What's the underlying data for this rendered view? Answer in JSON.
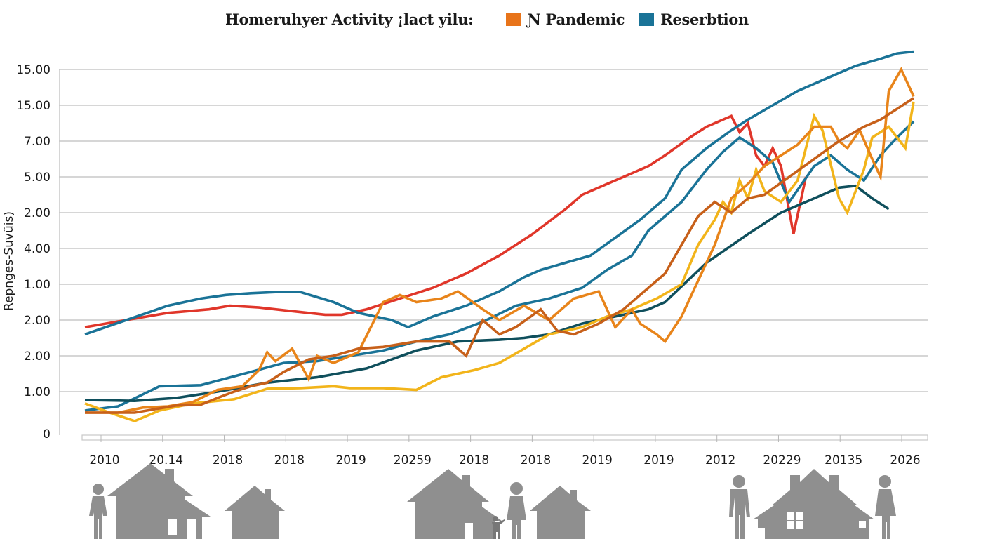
{
  "chart_data": {
    "type": "line",
    "title": "Homeruhyer Activity ¡lact yilu:",
    "legend": [
      {
        "label": "Ɲ Pandemic",
        "color": "#e8741a"
      },
      {
        "label": "Reserbtion",
        "color": "#1a7397"
      }
    ],
    "legend_position": "top",
    "ylabel": "Repnges-Suvüis)",
    "xlabel": "",
    "y_tick_labels": [
      "0",
      "1.00",
      "2.00",
      "2.00",
      "1.00",
      "4.00",
      "2.00",
      "5.00",
      "7.00",
      "15.00",
      "15.00"
    ],
    "y_axis_positions": [
      0,
      1,
      2,
      3,
      4,
      5,
      6,
      7,
      8,
      9,
      10
    ],
    "x_tick_labels": [
      "2010",
      "20.14",
      "2018",
      "2018",
      "2019",
      "20259",
      "2018",
      "2018",
      "2019",
      "2019",
      "2012",
      "20229",
      "20135",
      "2026"
    ],
    "grid": true,
    "note": "Y values expressed in axis-position units (0 = baseline, 10 = top gridline); x in 0-1 fraction across the plot.",
    "series": [
      {
        "name": "red",
        "color": "#e0362a",
        "points": [
          [
            0.0,
            2.8
          ],
          [
            0.05,
            3.0
          ],
          [
            0.1,
            3.2
          ],
          [
            0.15,
            3.3
          ],
          [
            0.175,
            3.4
          ],
          [
            0.21,
            3.35
          ],
          [
            0.25,
            3.25
          ],
          [
            0.29,
            3.15
          ],
          [
            0.31,
            3.15
          ],
          [
            0.34,
            3.3
          ],
          [
            0.38,
            3.6
          ],
          [
            0.42,
            3.9
          ],
          [
            0.46,
            4.3
          ],
          [
            0.5,
            4.8
          ],
          [
            0.54,
            5.4
          ],
          [
            0.58,
            6.1
          ],
          [
            0.6,
            6.5
          ],
          [
            0.63,
            6.8
          ],
          [
            0.66,
            7.1
          ],
          [
            0.68,
            7.3
          ],
          [
            0.7,
            7.6
          ],
          [
            0.73,
            8.1
          ],
          [
            0.75,
            8.4
          ],
          [
            0.77,
            8.6
          ],
          [
            0.78,
            8.7
          ],
          [
            0.79,
            8.25
          ],
          [
            0.8,
            8.5
          ],
          [
            0.81,
            7.6
          ],
          [
            0.82,
            7.3
          ],
          [
            0.83,
            7.8
          ],
          [
            0.84,
            7.3
          ],
          [
            0.855,
            5.4
          ],
          [
            0.87,
            7.0
          ]
        ]
      },
      {
        "name": "blue-upper",
        "color": "#1a7397",
        "points": [
          [
            0.0,
            2.6
          ],
          [
            0.05,
            3.0
          ],
          [
            0.1,
            3.4
          ],
          [
            0.14,
            3.6
          ],
          [
            0.17,
            3.7
          ],
          [
            0.2,
            3.75
          ],
          [
            0.23,
            3.78
          ],
          [
            0.26,
            3.78
          ],
          [
            0.3,
            3.5
          ],
          [
            0.33,
            3.2
          ],
          [
            0.37,
            3.0
          ],
          [
            0.39,
            2.8
          ],
          [
            0.42,
            3.1
          ],
          [
            0.46,
            3.4
          ],
          [
            0.5,
            3.8
          ],
          [
            0.53,
            4.2
          ],
          [
            0.55,
            4.4
          ],
          [
            0.58,
            4.6
          ],
          [
            0.61,
            4.8
          ],
          [
            0.64,
            5.3
          ],
          [
            0.67,
            5.8
          ],
          [
            0.7,
            6.4
          ],
          [
            0.72,
            7.2
          ],
          [
            0.75,
            7.8
          ],
          [
            0.78,
            8.3
          ],
          [
            0.8,
            8.6
          ],
          [
            0.83,
            9.0
          ],
          [
            0.86,
            9.4
          ],
          [
            0.9,
            9.8
          ],
          [
            0.93,
            10.1
          ],
          [
            0.96,
            10.3
          ],
          [
            0.98,
            10.45
          ],
          [
            1.0,
            10.5
          ]
        ]
      },
      {
        "name": "blue-lower",
        "color": "#1a7397",
        "points": [
          [
            0.0,
            0.55
          ],
          [
            0.04,
            0.65
          ],
          [
            0.09,
            1.15
          ],
          [
            0.14,
            1.18
          ],
          [
            0.2,
            1.55
          ],
          [
            0.24,
            1.8
          ],
          [
            0.28,
            1.85
          ],
          [
            0.32,
            2.0
          ],
          [
            0.36,
            2.15
          ],
          [
            0.4,
            2.4
          ],
          [
            0.44,
            2.6
          ],
          [
            0.48,
            2.95
          ],
          [
            0.52,
            3.4
          ],
          [
            0.56,
            3.6
          ],
          [
            0.6,
            3.9
          ],
          [
            0.63,
            4.4
          ],
          [
            0.66,
            4.8
          ],
          [
            0.68,
            5.5
          ],
          [
            0.72,
            6.3
          ],
          [
            0.75,
            7.2
          ],
          [
            0.77,
            7.7
          ],
          [
            0.79,
            8.1
          ],
          [
            0.81,
            7.8
          ],
          [
            0.83,
            7.4
          ],
          [
            0.85,
            6.3
          ],
          [
            0.88,
            7.3
          ],
          [
            0.9,
            7.6
          ],
          [
            0.92,
            7.2
          ],
          [
            0.94,
            6.9
          ],
          [
            0.96,
            7.6
          ],
          [
            0.98,
            8.1
          ],
          [
            1.0,
            8.55
          ]
        ]
      },
      {
        "name": "dark-teal",
        "color": "#0f4f5c",
        "points": [
          [
            0.0,
            0.8
          ],
          [
            0.06,
            0.78
          ],
          [
            0.11,
            0.85
          ],
          [
            0.16,
            1.0
          ],
          [
            0.22,
            1.25
          ],
          [
            0.28,
            1.4
          ],
          [
            0.34,
            1.65
          ],
          [
            0.4,
            2.15
          ],
          [
            0.45,
            2.4
          ],
          [
            0.5,
            2.45
          ],
          [
            0.53,
            2.5
          ],
          [
            0.56,
            2.6
          ],
          [
            0.6,
            2.9
          ],
          [
            0.64,
            3.1
          ],
          [
            0.68,
            3.3
          ],
          [
            0.7,
            3.5
          ],
          [
            0.75,
            4.6
          ],
          [
            0.8,
            5.4
          ],
          [
            0.84,
            6.0
          ],
          [
            0.88,
            6.4
          ],
          [
            0.91,
            6.7
          ],
          [
            0.93,
            6.75
          ],
          [
            0.95,
            6.4
          ],
          [
            0.97,
            6.1
          ]
        ]
      },
      {
        "name": "yellow",
        "color": "#f2b41a",
        "points": [
          [
            0.0,
            0.72
          ],
          [
            0.03,
            0.5
          ],
          [
            0.06,
            0.3
          ],
          [
            0.09,
            0.55
          ],
          [
            0.13,
            0.72
          ],
          [
            0.18,
            0.82
          ],
          [
            0.22,
            1.08
          ],
          [
            0.26,
            1.1
          ],
          [
            0.3,
            1.15
          ],
          [
            0.32,
            1.1
          ],
          [
            0.36,
            1.1
          ],
          [
            0.4,
            1.05
          ],
          [
            0.43,
            1.4
          ],
          [
            0.47,
            1.6
          ],
          [
            0.5,
            1.8
          ],
          [
            0.53,
            2.2
          ],
          [
            0.56,
            2.6
          ],
          [
            0.6,
            2.8
          ],
          [
            0.63,
            3.1
          ],
          [
            0.66,
            3.3
          ],
          [
            0.69,
            3.6
          ],
          [
            0.72,
            4.0
          ],
          [
            0.74,
            5.1
          ],
          [
            0.76,
            5.8
          ],
          [
            0.77,
            6.3
          ],
          [
            0.78,
            6.0
          ],
          [
            0.79,
            6.9
          ],
          [
            0.8,
            6.4
          ],
          [
            0.81,
            7.2
          ],
          [
            0.82,
            6.6
          ],
          [
            0.84,
            6.3
          ],
          [
            0.86,
            6.9
          ],
          [
            0.88,
            8.7
          ],
          [
            0.89,
            8.3
          ],
          [
            0.91,
            6.4
          ],
          [
            0.92,
            6.0
          ],
          [
            0.94,
            7.2
          ],
          [
            0.95,
            8.1
          ],
          [
            0.97,
            8.4
          ],
          [
            0.99,
            7.8
          ],
          [
            1.0,
            9.1
          ]
        ]
      },
      {
        "name": "orange",
        "color": "#e8841a",
        "points": [
          [
            0.0,
            0.5
          ],
          [
            0.04,
            0.5
          ],
          [
            0.07,
            0.62
          ],
          [
            0.1,
            0.65
          ],
          [
            0.13,
            0.75
          ],
          [
            0.16,
            1.05
          ],
          [
            0.19,
            1.15
          ],
          [
            0.21,
            1.6
          ],
          [
            0.22,
            2.1
          ],
          [
            0.23,
            1.85
          ],
          [
            0.25,
            2.2
          ],
          [
            0.27,
            1.35
          ],
          [
            0.28,
            2.0
          ],
          [
            0.3,
            1.8
          ],
          [
            0.33,
            2.1
          ],
          [
            0.36,
            3.5
          ],
          [
            0.38,
            3.7
          ],
          [
            0.4,
            3.5
          ],
          [
            0.43,
            3.6
          ],
          [
            0.45,
            3.8
          ],
          [
            0.48,
            3.3
          ],
          [
            0.5,
            3.0
          ],
          [
            0.53,
            3.4
          ],
          [
            0.56,
            3.0
          ],
          [
            0.59,
            3.6
          ],
          [
            0.62,
            3.8
          ],
          [
            0.64,
            2.8
          ],
          [
            0.66,
            3.3
          ],
          [
            0.67,
            2.9
          ],
          [
            0.69,
            2.6
          ],
          [
            0.7,
            2.4
          ],
          [
            0.72,
            3.1
          ],
          [
            0.74,
            4.1
          ],
          [
            0.76,
            5.1
          ],
          [
            0.78,
            6.4
          ],
          [
            0.8,
            6.8
          ],
          [
            0.82,
            7.3
          ],
          [
            0.84,
            7.6
          ],
          [
            0.86,
            7.9
          ],
          [
            0.88,
            8.4
          ],
          [
            0.9,
            8.4
          ],
          [
            0.91,
            8.0
          ],
          [
            0.92,
            7.8
          ],
          [
            0.935,
            8.3
          ],
          [
            0.95,
            7.5
          ],
          [
            0.96,
            7.0
          ],
          [
            0.97,
            9.4
          ],
          [
            0.985,
            10.0
          ],
          [
            1.0,
            9.25
          ]
        ]
      },
      {
        "name": "dark-orange",
        "color": "#c7601a",
        "points": [
          [
            0.0,
            0.5
          ],
          [
            0.06,
            0.5
          ],
          [
            0.11,
            0.67
          ],
          [
            0.14,
            0.69
          ],
          [
            0.16,
            0.85
          ],
          [
            0.18,
            1.0
          ],
          [
            0.2,
            1.15
          ],
          [
            0.22,
            1.25
          ],
          [
            0.24,
            1.55
          ],
          [
            0.27,
            1.9
          ],
          [
            0.3,
            2.0
          ],
          [
            0.33,
            2.2
          ],
          [
            0.36,
            2.25
          ],
          [
            0.4,
            2.4
          ],
          [
            0.44,
            2.4
          ],
          [
            0.46,
            2.0
          ],
          [
            0.48,
            3.0
          ],
          [
            0.5,
            2.6
          ],
          [
            0.52,
            2.8
          ],
          [
            0.55,
            3.3
          ],
          [
            0.57,
            2.7
          ],
          [
            0.59,
            2.6
          ],
          [
            0.62,
            2.9
          ],
          [
            0.65,
            3.3
          ],
          [
            0.68,
            3.9
          ],
          [
            0.7,
            4.3
          ],
          [
            0.72,
            5.1
          ],
          [
            0.74,
            5.9
          ],
          [
            0.76,
            6.3
          ],
          [
            0.78,
            6.0
          ],
          [
            0.8,
            6.4
          ],
          [
            0.82,
            6.5
          ],
          [
            0.85,
            7.0
          ],
          [
            0.88,
            7.5
          ],
          [
            0.91,
            8.0
          ],
          [
            0.94,
            8.4
          ],
          [
            0.96,
            8.6
          ],
          [
            0.98,
            8.9
          ],
          [
            1.0,
            9.2
          ]
        ]
      }
    ]
  }
}
